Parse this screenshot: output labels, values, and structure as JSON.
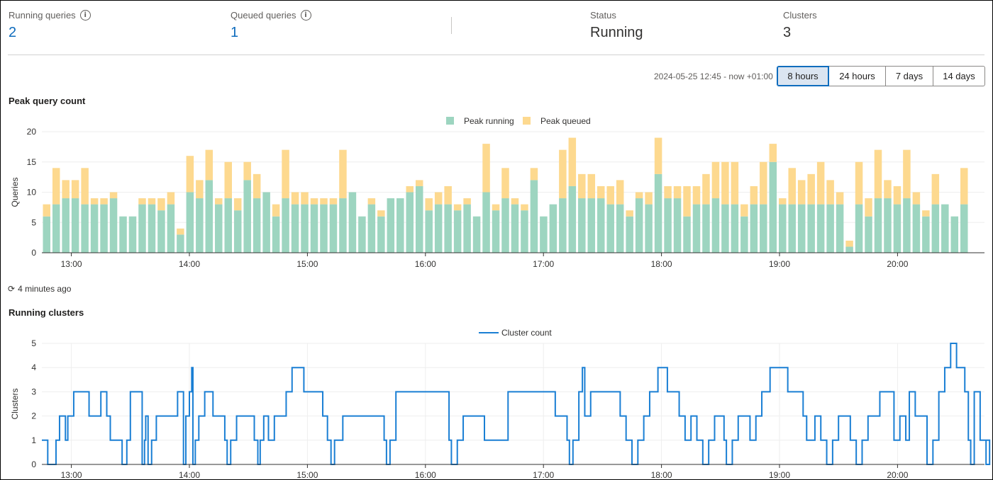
{
  "metrics": {
    "running": {
      "label": "Running queries",
      "value": "2"
    },
    "queued": {
      "label": "Queued queries",
      "value": "1"
    },
    "status": {
      "label": "Status",
      "value": "Running"
    },
    "clusters": {
      "label": "Clusters",
      "value": "3"
    }
  },
  "time_range": {
    "label": "2024-05-25 12:45 - now +01:00",
    "options": [
      "8 hours",
      "24 hours",
      "7 days",
      "14 days"
    ],
    "selected": "8 hours"
  },
  "refresh_text": "4 minutes ago",
  "colors": {
    "running": "#9dd5c0",
    "queued": "#fdd98f",
    "line": "#1a7fd4"
  },
  "chart_data": [
    {
      "type": "bar",
      "stacked": true,
      "title": "Peak query count",
      "ylabel": "Queries",
      "ylim": [
        0,
        20
      ],
      "yticks": [
        0,
        5,
        10,
        15,
        20
      ],
      "xticks": [
        "13:00",
        "14:00",
        "15:00",
        "16:00",
        "17:00",
        "18:00",
        "19:00",
        "20:00"
      ],
      "legend_position": "top-center",
      "series": [
        {
          "name": "Peak running",
          "values": [
            6,
            8,
            9,
            9,
            8,
            8,
            8,
            9,
            6,
            6,
            8,
            8,
            7,
            8,
            3,
            10,
            9,
            12,
            8,
            9,
            7,
            12,
            9,
            10,
            6,
            9,
            8,
            8,
            8,
            8,
            8,
            9,
            10,
            6,
            8,
            6,
            9,
            9,
            10,
            11,
            7,
            8,
            8,
            7,
            8,
            6,
            10,
            7,
            9,
            8,
            7,
            12,
            6,
            8,
            9,
            11,
            9,
            9,
            9,
            8,
            8,
            6,
            9,
            8,
            13,
            9,
            9,
            6,
            8,
            8,
            9,
            8,
            8,
            6,
            8,
            8,
            15,
            8,
            8,
            8,
            8,
            8,
            8,
            8,
            1,
            8,
            6,
            9,
            9,
            8,
            9,
            8,
            6,
            8,
            8,
            6,
            8
          ]
        },
        {
          "name": "Peak queued",
          "values": [
            2,
            6,
            3,
            3,
            6,
            1,
            1,
            1,
            0,
            0,
            1,
            1,
            2,
            2,
            1,
            6,
            3,
            5,
            1,
            6,
            2,
            3,
            4,
            0,
            2,
            8,
            2,
            2,
            1,
            1,
            1,
            8,
            0,
            0,
            1,
            1,
            0,
            0,
            1,
            1,
            2,
            2,
            3,
            1,
            1,
            0,
            8,
            1,
            5,
            1,
            1,
            2,
            0,
            0,
            8,
            8,
            4,
            4,
            2,
            3,
            4,
            1,
            1,
            2,
            6,
            2,
            2,
            5,
            3,
            5,
            6,
            7,
            7,
            2,
            3,
            7,
            3,
            1,
            6,
            4,
            5,
            7,
            4,
            2,
            1,
            7,
            3,
            8,
            3,
            3,
            8,
            2,
            1,
            5,
            0,
            0,
            6
          ]
        }
      ]
    },
    {
      "type": "line",
      "step": true,
      "title": "Running clusters",
      "ylabel": "Clusters",
      "ylim": [
        0,
        5
      ],
      "yticks": [
        0,
        1,
        2,
        3,
        4,
        5
      ],
      "xticks": [
        "13:00",
        "14:00",
        "15:00",
        "16:00",
        "17:00",
        "18:00",
        "19:00",
        "20:00"
      ],
      "x_unit": "hours after 12:45",
      "legend_position": "top-center",
      "grid": true,
      "series": [
        {
          "name": "Cluster count",
          "points": [
            [
              0,
              1
            ],
            [
              0.05,
              0
            ],
            [
              0.12,
              1
            ],
            [
              0.15,
              2
            ],
            [
              0.2,
              1
            ],
            [
              0.22,
              2
            ],
            [
              0.27,
              3
            ],
            [
              0.4,
              2
            ],
            [
              0.5,
              3
            ],
            [
              0.55,
              2
            ],
            [
              0.58,
              1
            ],
            [
              0.68,
              0
            ],
            [
              0.72,
              1
            ],
            [
              0.75,
              3
            ],
            [
              0.85,
              0
            ],
            [
              0.87,
              1
            ],
            [
              0.88,
              2
            ],
            [
              0.9,
              0
            ],
            [
              0.93,
              1
            ],
            [
              0.97,
              2
            ],
            [
              1.15,
              3
            ],
            [
              1.2,
              0
            ],
            [
              1.22,
              2
            ],
            [
              1.25,
              3
            ],
            [
              1.27,
              4
            ],
            [
              1.28,
              0
            ],
            [
              1.3,
              1
            ],
            [
              1.33,
              2
            ],
            [
              1.38,
              3
            ],
            [
              1.45,
              2
            ],
            [
              1.55,
              1
            ],
            [
              1.57,
              0
            ],
            [
              1.6,
              1
            ],
            [
              1.65,
              2
            ],
            [
              1.8,
              1
            ],
            [
              1.83,
              0
            ],
            [
              1.85,
              1
            ],
            [
              1.88,
              2
            ],
            [
              1.92,
              1
            ],
            [
              1.97,
              2
            ],
            [
              2.07,
              3
            ],
            [
              2.12,
              4
            ],
            [
              2.22,
              3
            ],
            [
              2.38,
              2
            ],
            [
              2.42,
              1
            ],
            [
              2.45,
              0
            ],
            [
              2.48,
              1
            ],
            [
              2.55,
              2
            ],
            [
              2.9,
              1
            ],
            [
              2.92,
              0
            ],
            [
              2.95,
              1
            ],
            [
              3.0,
              3
            ],
            [
              3.45,
              1
            ],
            [
              3.47,
              0
            ],
            [
              3.52,
              1
            ],
            [
              3.57,
              2
            ],
            [
              3.75,
              1
            ],
            [
              3.95,
              3
            ],
            [
              4.35,
              2
            ],
            [
              4.45,
              1
            ],
            [
              4.47,
              0
            ],
            [
              4.5,
              1
            ],
            [
              4.55,
              3
            ],
            [
              4.58,
              4
            ],
            [
              4.6,
              2
            ],
            [
              4.65,
              3
            ],
            [
              4.9,
              2
            ],
            [
              4.95,
              1
            ],
            [
              5.0,
              0
            ],
            [
              5.05,
              1
            ],
            [
              5.1,
              2
            ],
            [
              5.15,
              3
            ],
            [
              5.22,
              4
            ],
            [
              5.3,
              3
            ],
            [
              5.4,
              2
            ],
            [
              5.45,
              1
            ],
            [
              5.5,
              2
            ],
            [
              5.55,
              1
            ],
            [
              5.6,
              0
            ],
            [
              5.65,
              1
            ],
            [
              5.7,
              2
            ],
            [
              5.78,
              1
            ],
            [
              5.8,
              0
            ],
            [
              5.85,
              1
            ],
            [
              5.9,
              2
            ],
            [
              6.0,
              1
            ],
            [
              6.05,
              2
            ],
            [
              6.1,
              3
            ],
            [
              6.17,
              4
            ],
            [
              6.32,
              3
            ],
            [
              6.45,
              2
            ],
            [
              6.48,
              1
            ],
            [
              6.55,
              2
            ],
            [
              6.6,
              1
            ],
            [
              6.65,
              0
            ],
            [
              6.7,
              1
            ],
            [
              6.75,
              2
            ],
            [
              6.85,
              1
            ],
            [
              6.9,
              0
            ],
            [
              6.95,
              1
            ],
            [
              7.0,
              2
            ],
            [
              7.1,
              3
            ],
            [
              7.22,
              1
            ],
            [
              7.27,
              2
            ],
            [
              7.32,
              1
            ],
            [
              7.35,
              3
            ],
            [
              7.4,
              2
            ],
            [
              7.5,
              0
            ],
            [
              7.55,
              1
            ],
            [
              7.6,
              3
            ],
            [
              7.65,
              4
            ],
            [
              7.7,
              5
            ],
            [
              7.75,
              4
            ],
            [
              7.82,
              3
            ],
            [
              7.85,
              1
            ],
            [
              7.87,
              0
            ],
            [
              7.9,
              3
            ],
            [
              7.95,
              1
            ],
            [
              8.0,
              0
            ],
            [
              8.03,
              1
            ]
          ]
        }
      ]
    }
  ]
}
